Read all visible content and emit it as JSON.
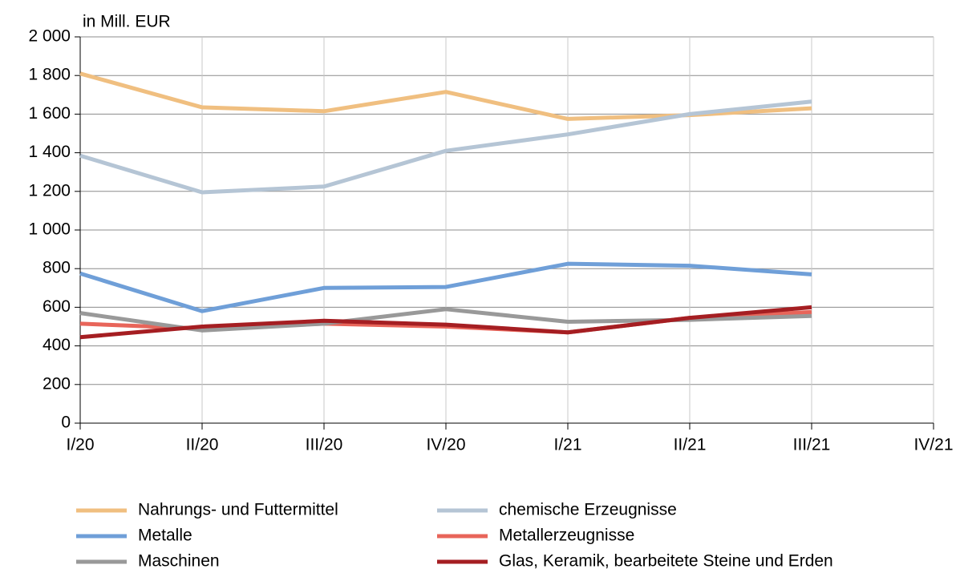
{
  "chart_data": {
    "type": "line",
    "y_axis_label": "in Mill. EUR",
    "categories": [
      "I/20",
      "II/20",
      "III/20",
      "IV/20",
      "I/21",
      "II/21",
      "III/21",
      "IV/21"
    ],
    "series": [
      {
        "name": "Nahrungs- und  Futtermittel",
        "color": "#f0bf80",
        "values": [
          1810,
          1635,
          1615,
          1715,
          1575,
          1595,
          1630,
          null
        ]
      },
      {
        "name": "chemische  Erzeugnisse",
        "color": "#b5c5d5",
        "values": [
          1385,
          1195,
          1225,
          1410,
          1495,
          1600,
          1665,
          null
        ]
      },
      {
        "name": "Metalle",
        "color": "#6f9fd8",
        "values": [
          775,
          580,
          700,
          705,
          825,
          815,
          770,
          null
        ]
      },
      {
        "name": "Metallerzeugnisse",
        "color": "#e8655a",
        "values": [
          515,
          490,
          515,
          500,
          470,
          545,
          575,
          null
        ]
      },
      {
        "name": "Maschinen",
        "color": "#999999",
        "values": [
          570,
          480,
          515,
          590,
          525,
          535,
          555,
          null
        ]
      },
      {
        "name": "Glas, Keramik, bearbeitete Steine und Erden",
        "color": "#a51e22",
        "values": [
          445,
          500,
          530,
          510,
          470,
          545,
          600,
          null
        ]
      }
    ],
    "ylim": [
      0,
      2000
    ],
    "yticks": [
      0,
      200,
      400,
      600,
      800,
      {
        "value": 1000,
        "label": "1 000"
      },
      {
        "value": 1200,
        "label": "1 200"
      },
      {
        "value": 1400,
        "label": "1 400"
      },
      {
        "value": 1600,
        "label": "1 600"
      },
      {
        "value": 1800,
        "label": "1 800"
      },
      {
        "value": 2000,
        "label": "2 000"
      }
    ],
    "grid": true,
    "legend": "bottom"
  }
}
